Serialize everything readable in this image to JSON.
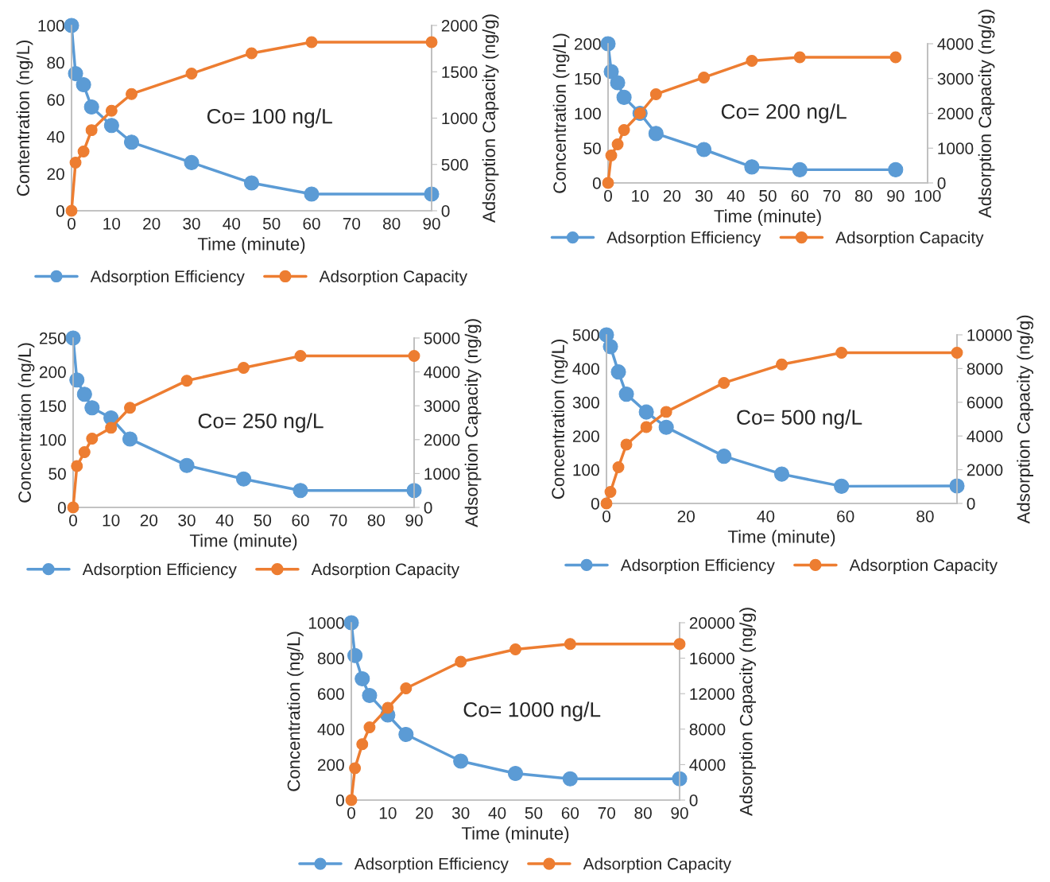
{
  "chart_data": [
    {
      "type": "line",
      "annotations": [
        "Co= 100 ng/L"
      ],
      "xlabel": "Time (minute)",
      "ylabel": "Contentration (ng/L)",
      "y2label": "Adsorption Capacity (ng/g)",
      "x": [
        0,
        1,
        3,
        5,
        10,
        15,
        30,
        45,
        60,
        90
      ],
      "xlim": [
        0,
        90
      ],
      "xticks": [
        0,
        10,
        20,
        30,
        40,
        50,
        60,
        70,
        80,
        90
      ],
      "ylim": [
        0,
        100
      ],
      "yticks": [
        0,
        20,
        40,
        60,
        80,
        100
      ],
      "y2lim": [
        0,
        2000
      ],
      "y2ticks": [
        0,
        500,
        1000,
        1500,
        2000
      ],
      "legend": "bottom",
      "marker": "circle",
      "line_style": "solid",
      "series": [
        {
          "name": "Adsorption Efficiency",
          "color": "#5b9bd5",
          "values": [
            100,
            74,
            68,
            56,
            46,
            37,
            26,
            15,
            9,
            9
          ]
        },
        {
          "name": "Adsorption Capacity",
          "color": "#ed7d31",
          "axis": "y2",
          "values": [
            0,
            520,
            640,
            870,
            1080,
            1260,
            1480,
            1700,
            1820,
            1820
          ]
        }
      ]
    },
    {
      "type": "line",
      "annotations": [
        "Co= 200 ng/L"
      ],
      "xlabel": "Time (minute)",
      "ylabel": "Concentration (ng/L)",
      "y2label": "Adsorption Capacity (ng/g)",
      "x": [
        0,
        1,
        3,
        5,
        10,
        15,
        30,
        45,
        60,
        90
      ],
      "xlim": [
        0,
        100
      ],
      "xticks": [
        0,
        10,
        20,
        30,
        40,
        50,
        60,
        70,
        80,
        90,
        100
      ],
      "ylim": [
        0,
        200
      ],
      "yticks": [
        0,
        50,
        100,
        150,
        200
      ],
      "y2lim": [
        0,
        4000
      ],
      "y2ticks": [
        0,
        1000,
        2000,
        3000,
        4000
      ],
      "legend": "bottom",
      "marker": "circle",
      "line_style": "solid",
      "series": [
        {
          "name": "Adsorption Efficiency",
          "color": "#5b9bd5",
          "values": [
            200,
            160,
            144,
            123,
            100,
            71,
            48,
            23,
            19,
            19
          ]
        },
        {
          "name": "Adsorption Capacity",
          "color": "#ed7d31",
          "axis": "y2",
          "values": [
            0,
            790,
            1110,
            1520,
            2000,
            2550,
            3030,
            3510,
            3610,
            3610
          ]
        }
      ]
    },
    {
      "type": "line",
      "annotations": [
        "Co= 250 ng/L"
      ],
      "xlabel": "Time (minute)",
      "ylabel": "Concentration (ng/L)",
      "y2label": "Adsorption Capacity (ng/g)",
      "x": [
        0,
        1,
        3,
        5,
        10,
        15,
        30,
        45,
        60,
        90
      ],
      "xlim": [
        0,
        90
      ],
      "xticks": [
        0,
        10,
        20,
        30,
        40,
        50,
        60,
        70,
        80,
        90
      ],
      "ylim": [
        0,
        250
      ],
      "yticks": [
        0,
        50,
        100,
        150,
        200,
        250
      ],
      "y2lim": [
        0,
        5000
      ],
      "y2ticks": [
        0,
        1000,
        2000,
        3000,
        4000,
        5000
      ],
      "legend": "bottom",
      "marker": "circle",
      "line_style": "solid",
      "series": [
        {
          "name": "Adsorption Efficiency",
          "color": "#5b9bd5",
          "values": [
            250,
            188,
            167,
            147,
            132,
            101,
            62,
            42,
            25,
            25
          ]
        },
        {
          "name": "Adsorption Capacity",
          "color": "#ed7d31",
          "axis": "y2",
          "values": [
            0,
            1220,
            1630,
            2030,
            2350,
            2940,
            3740,
            4120,
            4470,
            4470
          ]
        }
      ]
    },
    {
      "type": "line",
      "annotations": [
        "Co= 500 ng/L"
      ],
      "xlabel": "Time (minute)",
      "ylabel": "Concentration (ng/L)",
      "y2label": "Adsorption Capacity (ng/g)",
      "x": [
        0,
        1,
        3,
        5,
        10,
        15,
        29.5,
        44,
        59,
        88
      ],
      "xlim": [
        0,
        88
      ],
      "xticks": [
        0,
        20,
        40,
        60,
        80
      ],
      "ylim": [
        0,
        500
      ],
      "yticks": [
        0,
        100,
        200,
        300,
        400,
        500
      ],
      "y2lim": [
        0,
        10000
      ],
      "y2ticks": [
        0,
        2000,
        4000,
        6000,
        8000,
        10000
      ],
      "legend": "bottom",
      "marker": "circle",
      "line_style": "solid",
      "series": [
        {
          "name": "Adsorption Efficiency",
          "color": "#5b9bd5",
          "values": [
            500,
            465,
            390,
            324,
            271,
            226,
            140,
            87,
            51,
            52
          ]
        },
        {
          "name": "Adsorption Capacity",
          "color": "#ed7d31",
          "axis": "y2",
          "values": [
            0,
            680,
            2150,
            3490,
            4530,
            5430,
            7150,
            8240,
            8940,
            8940
          ]
        }
      ]
    },
    {
      "type": "line",
      "annotations": [
        "Co= 1000 ng/L"
      ],
      "xlabel": "Time (minute)",
      "ylabel": "Concentration (ng/L)",
      "y2label": "Adsorption Capacity (ng/g)",
      "x": [
        0,
        1,
        3,
        5,
        10,
        15,
        30,
        45,
        60,
        90
      ],
      "xlim": [
        0,
        90
      ],
      "xticks": [
        0,
        10,
        20,
        30,
        40,
        50,
        60,
        70,
        80,
        90
      ],
      "ylim": [
        0,
        1000
      ],
      "yticks": [
        0,
        200,
        400,
        600,
        800,
        1000
      ],
      "y2lim": [
        0,
        20000
      ],
      "y2ticks": [
        0,
        4000,
        8000,
        12000,
        16000,
        20000
      ],
      "legend": "bottom",
      "marker": "circle",
      "line_style": "solid",
      "series": [
        {
          "name": "Adsorption Efficiency",
          "color": "#5b9bd5",
          "values": [
            1000,
            815,
            684,
            590,
            480,
            370,
            220,
            150,
            120,
            120
          ]
        },
        {
          "name": "Adsorption Capacity",
          "color": "#ed7d31",
          "axis": "y2",
          "values": [
            0,
            3600,
            6300,
            8200,
            10400,
            12600,
            15600,
            17000,
            17600,
            17600
          ]
        }
      ]
    }
  ]
}
